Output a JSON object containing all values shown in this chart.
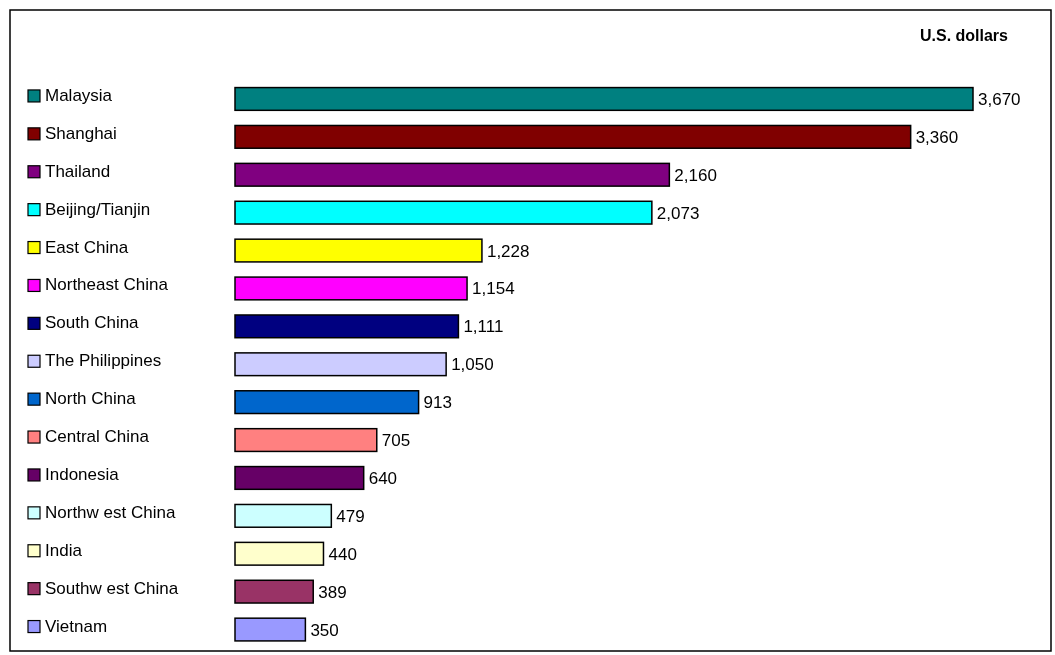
{
  "chart_data": {
    "type": "bar",
    "orientation": "horizontal",
    "categories": [
      "Malaysia",
      "Shanghai",
      "Thailand",
      "Beijing/Tianjin",
      "East China",
      "Northeast China",
      "South China",
      "The Philippines",
      "North China",
      "Central China",
      "Indonesia",
      "Northw est China",
      "India",
      "Southw est China",
      "Vietnam"
    ],
    "values": [
      3670,
      3360,
      2160,
      2073,
      1228,
      1154,
      1111,
      1050,
      913,
      705,
      640,
      479,
      440,
      389,
      350
    ],
    "value_labels": [
      "3,670",
      "3,360",
      "2,160",
      "2,073",
      "1,228",
      "1,154",
      "1,111",
      "1,050",
      "913",
      "705",
      "640",
      "479",
      "440",
      "389",
      "350"
    ],
    "colors": [
      "#008080",
      "#800000",
      "#800080",
      "#00ffff",
      "#ffff00",
      "#ff00ff",
      "#000080",
      "#ccccff",
      "#0066cc",
      "#ff8080",
      "#660066",
      "#ccffff",
      "#ffffcc",
      "#993366",
      "#9999ff"
    ],
    "annotations": [
      "U.S. dollars"
    ]
  }
}
